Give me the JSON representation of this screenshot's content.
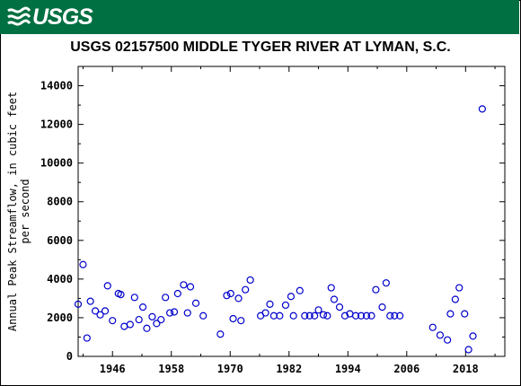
{
  "header": {
    "logo_text": "USGS",
    "brand_color": "#006f41",
    "logo_icon": "usgs-wave-icon"
  },
  "chart_data": {
    "type": "scatter",
    "title": "USGS 02157500 MIDDLE TYGER RIVER AT LYMAN, S.C.",
    "xlabel": "",
    "ylabel_lines": [
      "Annual Peak Streamflow, in cubic feet",
      "per second"
    ],
    "xlim": [
      1939,
      2026
    ],
    "ylim": [
      0,
      15000
    ],
    "x_ticks": [
      1946,
      1958,
      1970,
      1982,
      1994,
      2006,
      2018
    ],
    "y_ticks": [
      0,
      2000,
      4000,
      6000,
      8000,
      10000,
      12000,
      14000
    ],
    "y_tick_labels": [
      "0",
      "2000",
      "4000",
      "6000",
      "8000",
      "10000",
      "12000",
      "14000"
    ],
    "marker_color": "#0000cc",
    "marker": "open-circle",
    "grid": false,
    "series": [
      {
        "points": [
          [
            1939,
            2700
          ],
          [
            1940,
            4750
          ],
          [
            1940.8,
            950
          ],
          [
            1941.5,
            2850
          ],
          [
            1942.5,
            2350
          ],
          [
            1943.5,
            2150
          ],
          [
            1944.5,
            2350
          ],
          [
            1945,
            3650
          ],
          [
            1946,
            1850
          ],
          [
            1947.2,
            3250
          ],
          [
            1947.7,
            3200
          ],
          [
            1948.4,
            1550
          ],
          [
            1949.6,
            1650
          ],
          [
            1950.5,
            3050
          ],
          [
            1951.4,
            1900
          ],
          [
            1952.2,
            2550
          ],
          [
            1953,
            1450
          ],
          [
            1954.1,
            2050
          ],
          [
            1955,
            1700
          ],
          [
            1955.9,
            1900
          ],
          [
            1956.8,
            3050
          ],
          [
            1957.7,
            2250
          ],
          [
            1958.6,
            2300
          ],
          [
            1959.3,
            3250
          ],
          [
            1960.5,
            3700
          ],
          [
            1961.3,
            2250
          ],
          [
            1961.9,
            3600
          ],
          [
            1963,
            2750
          ],
          [
            1964.5,
            2100
          ],
          [
            1968,
            1150
          ],
          [
            1969.3,
            3150
          ],
          [
            1970.1,
            3250
          ],
          [
            1970.6,
            1950
          ],
          [
            1971.7,
            3000
          ],
          [
            1972.2,
            1850
          ],
          [
            1973.1,
            3450
          ],
          [
            1974.1,
            3950
          ],
          [
            1976.2,
            2100
          ],
          [
            1977.2,
            2250
          ],
          [
            1978.1,
            2700
          ],
          [
            1978.9,
            2100
          ],
          [
            1980.1,
            2100
          ],
          [
            1981.3,
            2650
          ],
          [
            1982.4,
            3100
          ],
          [
            1982.9,
            2100
          ],
          [
            1984.2,
            3400
          ],
          [
            1985.2,
            2100
          ],
          [
            1986.2,
            2100
          ],
          [
            1987.2,
            2100
          ],
          [
            1988,
            2400
          ],
          [
            1989,
            2150
          ],
          [
            1989.8,
            2100
          ],
          [
            1990.6,
            3550
          ],
          [
            1991.2,
            2950
          ],
          [
            1992.3,
            2550
          ],
          [
            1993.4,
            2100
          ],
          [
            1994.4,
            2200
          ],
          [
            1995.6,
            2100
          ],
          [
            1996.7,
            2100
          ],
          [
            1997.8,
            2100
          ],
          [
            1998.8,
            2100
          ],
          [
            1999.7,
            3450
          ],
          [
            2001,
            2550
          ],
          [
            2001.8,
            3800
          ],
          [
            2002.6,
            2100
          ],
          [
            2003.5,
            2100
          ],
          [
            2004.6,
            2100
          ],
          [
            2011.3,
            1500
          ],
          [
            2012.8,
            1100
          ],
          [
            2014.3,
            850
          ],
          [
            2014.9,
            2200
          ],
          [
            2015.9,
            2950
          ],
          [
            2016.7,
            3550
          ],
          [
            2017.8,
            2200
          ],
          [
            2018.6,
            350
          ],
          [
            2019.5,
            1050
          ],
          [
            2021.4,
            12800
          ]
        ]
      }
    ]
  }
}
